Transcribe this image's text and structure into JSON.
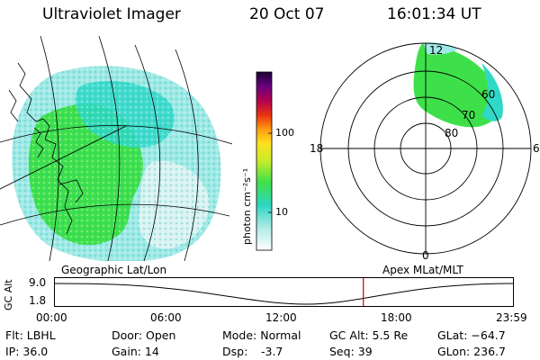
{
  "header": {
    "instrument": "Ultraviolet Imager",
    "date": "20 Oct 07",
    "time": "16:01:34 UT"
  },
  "colorbar": {
    "unit_label": "photon cm⁻²s⁻¹",
    "tick_100": "100",
    "tick_10": "10"
  },
  "polar_plot": {
    "label_top": "12",
    "label_left": "18",
    "label_right": "6",
    "label_bottom": "0",
    "lat_60": "60",
    "lat_70": "70",
    "lat_80": "80"
  },
  "altitude_strip": {
    "left_title": "Geographic Lat/Lon",
    "right_title": "Apex MLat/MLT",
    "axis_label": "GC Alt",
    "y_top": "9.0",
    "y_bottom": "1.8",
    "x_ticks": [
      "00:00",
      "06:00",
      "12:00",
      "18:00",
      "23:59"
    ],
    "current_time_fraction": 0.672
  },
  "info": {
    "flt": "Flt: LBHL",
    "ip": "IP: 36.0",
    "door": "Door: Open",
    "gain": "Gain: 14",
    "mode": "Mode: Normal",
    "dsp_label": "Dsp:",
    "dsp_value": "-3.7",
    "gc_alt": "GC Alt: 5.5 Re",
    "seq": "Seq: 39",
    "glat": "GLat: −64.7",
    "glon": "GLon: 236.7"
  },
  "colors": {
    "accent_line": "#cc0000",
    "aurora_green": "#3ee04a",
    "aurora_cyan": "#30d8c8"
  }
}
